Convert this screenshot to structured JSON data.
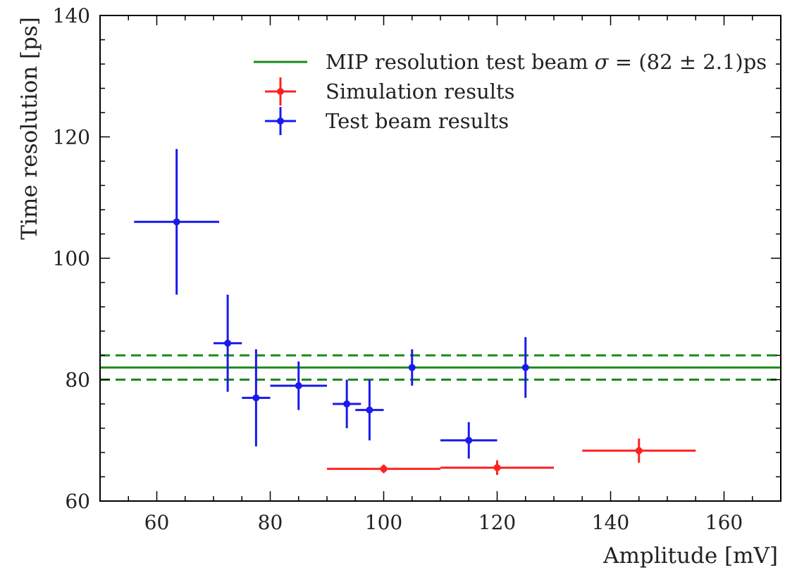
{
  "chart_data": {
    "type": "scatter",
    "xlabel": "Amplitude [mV]",
    "ylabel": "Time resolution [ps]",
    "xlim": [
      50,
      170
    ],
    "ylim": [
      60,
      140
    ],
    "x_ticks": [
      60,
      80,
      100,
      120,
      140,
      160
    ],
    "y_ticks": [
      60,
      80,
      100,
      120,
      140
    ],
    "grid": false,
    "legend_position": "top-right",
    "reference_line": {
      "name": "MIP resolution test beam",
      "legend_prefix": "MIP resolution test beam ",
      "legend_sigma": "σ",
      "legend_value": " = (82 ± 2.1)ps",
      "value": 82,
      "band": [
        80,
        84
      ],
      "color": "#1a8a1a"
    },
    "series": [
      {
        "name": "Simulation results",
        "color": "#ff2222",
        "points": [
          {
            "x": 100,
            "y": 65.3,
            "xerr": 10,
            "yerr": 0.7
          },
          {
            "x": 120,
            "y": 65.5,
            "xerr": 10,
            "yerr": 1.2
          },
          {
            "x": 145,
            "y": 68.3,
            "xerr": 10,
            "yerr": 2.0
          }
        ]
      },
      {
        "name": "Test beam results",
        "color": "#1a1aee",
        "points": [
          {
            "x": 63.5,
            "y": 106,
            "xerr": 7.5,
            "yerr": 12
          },
          {
            "x": 72.5,
            "y": 86,
            "xerr": 2.5,
            "yerr": 8
          },
          {
            "x": 77.5,
            "y": 77,
            "xerr": 2.5,
            "yerr": 8
          },
          {
            "x": 85,
            "y": 79,
            "xerr": 5,
            "yerr": 4
          },
          {
            "x": 93.5,
            "y": 76,
            "xerr": 2.5,
            "yerr": 4
          },
          {
            "x": 97.5,
            "y": 75,
            "xerr": 2.5,
            "yerr": 5
          },
          {
            "x": 105,
            "y": 82,
            "xerr": 0,
            "yerr": 3
          },
          {
            "x": 115,
            "y": 70,
            "xerr": 5,
            "yerr": 3
          },
          {
            "x": 125,
            "y": 82,
            "xerr": 0,
            "yerr": 5
          }
        ]
      }
    ]
  }
}
